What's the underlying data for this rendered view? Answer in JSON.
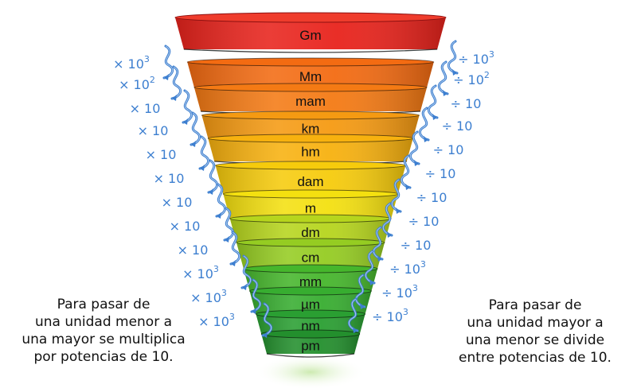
{
  "units": [
    "Gm",
    "Mm",
    "mam",
    "km",
    "hm",
    "dam",
    "m",
    "dm",
    "cm",
    "mm",
    "µm",
    "nm",
    "pm"
  ],
  "left_ops": [
    {
      "sym": "×",
      "base": "10",
      "exp": "3"
    },
    {
      "sym": "×",
      "base": "10",
      "exp": "2"
    },
    {
      "sym": "×",
      "base": "10",
      "exp": ""
    },
    {
      "sym": "×",
      "base": "10",
      "exp": ""
    },
    {
      "sym": "×",
      "base": "10",
      "exp": ""
    },
    {
      "sym": "×",
      "base": "10",
      "exp": ""
    },
    {
      "sym": "×",
      "base": "10",
      "exp": ""
    },
    {
      "sym": "×",
      "base": "10",
      "exp": ""
    },
    {
      "sym": "×",
      "base": "10",
      "exp": ""
    },
    {
      "sym": "×",
      "base": "10",
      "exp": "3"
    },
    {
      "sym": "×",
      "base": "10",
      "exp": "3"
    },
    {
      "sym": "×",
      "base": "10",
      "exp": "3"
    }
  ],
  "right_ops": [
    {
      "sym": "÷",
      "base": "10",
      "exp": "3"
    },
    {
      "sym": "÷",
      "base": "10",
      "exp": "2"
    },
    {
      "sym": "÷",
      "base": "10",
      "exp": ""
    },
    {
      "sym": "÷",
      "base": "10",
      "exp": ""
    },
    {
      "sym": "÷",
      "base": "10",
      "exp": ""
    },
    {
      "sym": "÷",
      "base": "10",
      "exp": ""
    },
    {
      "sym": "÷",
      "base": "10",
      "exp": ""
    },
    {
      "sym": "÷",
      "base": "10",
      "exp": ""
    },
    {
      "sym": "÷",
      "base": "10",
      "exp": ""
    },
    {
      "sym": "÷",
      "base": "10",
      "exp": "3"
    },
    {
      "sym": "÷",
      "base": "10",
      "exp": "3"
    },
    {
      "sym": "÷",
      "base": "10",
      "exp": "3"
    }
  ],
  "left_note": [
    "Para pasar de",
    "una unidad menor a",
    "una mayor se multiplica",
    "por potencias de 10."
  ],
  "right_note": [
    "Para pasar de",
    "una unidad mayor a",
    "una menor  se divide",
    "entre potencias de 10."
  ],
  "colors": {
    "bands": [
      "#e8231c",
      "#f36b12",
      "#f47a14",
      "#f59a12",
      "#f7b10f",
      "#f6cb0c",
      "#f4e010",
      "#b6d51d",
      "#95cc22",
      "#46b62c",
      "#37ad30",
      "#2a9f32",
      "#238f2d"
    ],
    "arrows": "#3d7fd0",
    "op_text": "#3d7fd0"
  }
}
